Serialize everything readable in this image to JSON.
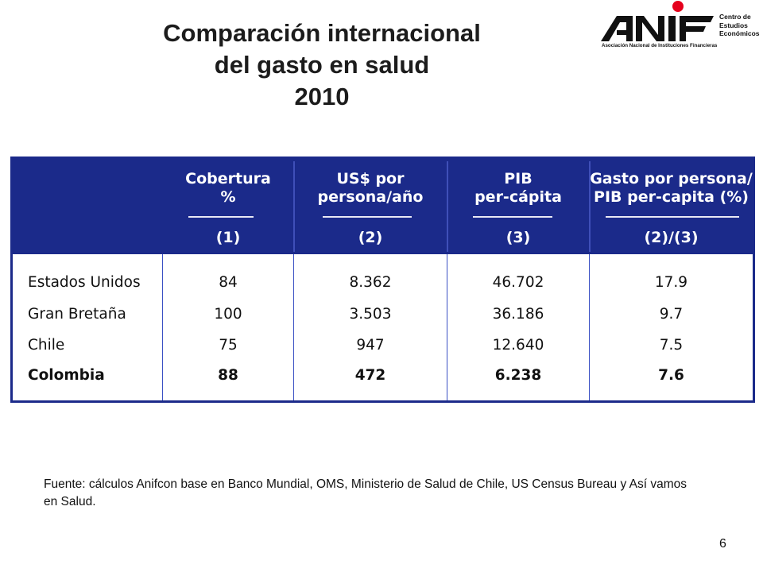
{
  "title": {
    "line1": "Comparación internacional",
    "line2": "del gasto en salud",
    "line3": "2010"
  },
  "logo": {
    "wordmark": "ANIF",
    "side_line1": "Centro de",
    "side_line2": "Estudios",
    "side_line3": "Económicos",
    "subtitle": "Asociación Nacional de Instituciones Financieras",
    "accent_color": "#e5001c"
  },
  "table": {
    "header_color": "#1b2a8a",
    "columns": [
      {
        "label_line1": "Cobertura",
        "label_line2": "%",
        "ref": "(1)"
      },
      {
        "label_line1": "US$ por",
        "label_line2": "persona/año",
        "ref": "(2)"
      },
      {
        "label_line1": "PIB",
        "label_line2": "per-cápita",
        "ref": "(3)"
      },
      {
        "label_line1": "Gasto por persona/",
        "label_line2": "PIB per-capita (%)",
        "ref": "(2)/(3)"
      }
    ],
    "rows": [
      {
        "country": "Estados Unidos",
        "cobertura": "84",
        "usd": "8.362",
        "pib": "46.702",
        "ratio": "17.9"
      },
      {
        "country": "Gran Bretaña",
        "cobertura": "100",
        "usd": "3.503",
        "pib": "36.186",
        "ratio": "9.7"
      },
      {
        "country": "Chile",
        "cobertura": "75",
        "usd": "947",
        "pib": "12.640",
        "ratio": "7.5"
      },
      {
        "country": "Colombia",
        "cobertura": "88",
        "usd": "472",
        "pib": "6.238",
        "ratio": "7.6"
      }
    ]
  },
  "source": "Fuente: cálculos Anifcon base en Banco Mundial, OMS, Ministerio de Salud de Chile, US Census Bureau y Así vamos en Salud.",
  "page_number": "6"
}
